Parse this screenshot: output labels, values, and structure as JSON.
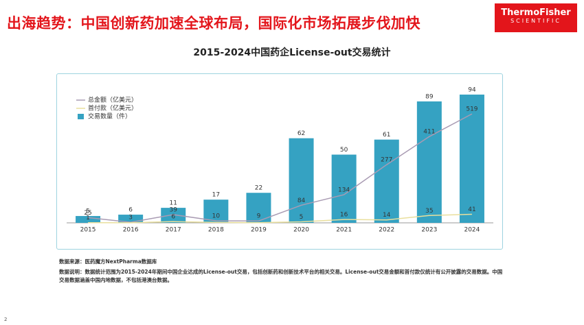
{
  "header": {
    "title": "出海趋势：中国创新药加速全球布局，国际化市场拓展步伐加快",
    "logo_line1": "ThermoFisher",
    "logo_line2": "SCIENTIFIC"
  },
  "chart_data": {
    "type": "bar",
    "title": "2015-2024中国药企License-out交易统计",
    "categories": [
      "2015",
      "2016",
      "2017",
      "2018",
      "2019",
      "2020",
      "2021",
      "2022",
      "2023",
      "2024"
    ],
    "series": [
      {
        "name": "交易数量（件）",
        "type": "bar",
        "color": "#35a2c2",
        "values": [
          5,
          6,
          11,
          17,
          22,
          62,
          50,
          61,
          89,
          94
        ]
      },
      {
        "name": "总金额（亿美元）",
        "type": "line",
        "axis": "y2",
        "color": "#a99bb3",
        "values": [
          25,
          3,
          39,
          10,
          9,
          84,
          134,
          277,
          411,
          519
        ]
      },
      {
        "name": "首付款（亿美元）",
        "type": "line",
        "axis": "y2",
        "color": "#e9df9c",
        "values": [
          1,
          0.5,
          6,
          2,
          1,
          5,
          16,
          14,
          35,
          41
        ],
        "value_labels": [
          "1",
          null,
          "6",
          null,
          null,
          "5",
          "16",
          "14",
          "35",
          "41"
        ]
      }
    ],
    "ylim": [
      0,
      100
    ],
    "y2lim": [
      0,
      650
    ]
  },
  "notes": {
    "source": "数据来源：医药魔方NextPharma数据库",
    "description": "数据说明：数据统计范围为2015-2024年期间中国企业达成的License-out交易，包括创新药和创新技术平台的相关交易。License-out交易金额和首付款仅统计有公开披露的交易数据。中国交易数据涵盖中国内地数据，不包括港澳台数据。"
  },
  "page_number": "2"
}
